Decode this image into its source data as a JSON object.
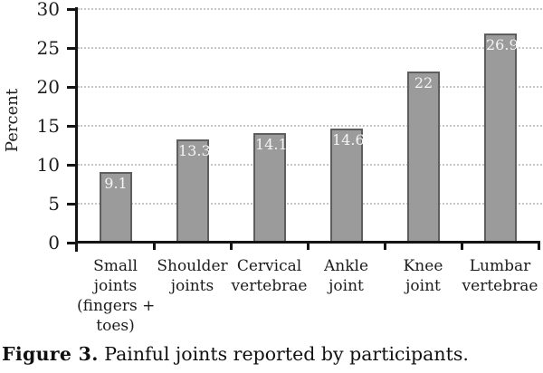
{
  "figure": {
    "caption_label": "Figure 3.",
    "caption_text": "Painful joints reported by participants."
  },
  "chart_data": {
    "type": "bar",
    "title": "",
    "xlabel": "",
    "ylabel": "Percent",
    "ylim": [
      0,
      30
    ],
    "yticks": [
      0,
      5,
      10,
      15,
      20,
      25,
      30
    ],
    "grid": "horizontal-dotted",
    "legend_position": "none",
    "categories": [
      "Small joints (fingers + toes)",
      "Shoulder joints",
      "Cervical vertebrae",
      "Ankle joint",
      "Knee joint",
      "Lumbar vertebrae"
    ],
    "category_label_lines": [
      [
        "Small",
        "joints",
        "(fingers +",
        "toes)"
      ],
      [
        "Shoulder",
        "joints"
      ],
      [
        "Cervical",
        "vertebrae"
      ],
      [
        "Ankle",
        "joint"
      ],
      [
        "Knee",
        "joint"
      ],
      [
        "Lumbar",
        "vertebrae"
      ]
    ],
    "values": [
      9.1,
      13.3,
      14.1,
      14.6,
      22,
      26.9
    ],
    "value_labels": [
      "9.1",
      "13.3",
      "14.1",
      "14.6",
      "22",
      "26.9"
    ],
    "colors": {
      "bar_fill": "#9b9b9b",
      "bar_border": "#5e5e60",
      "value_label": "#f4f4f4",
      "axis": "#141414",
      "gridline": "#c6c6c6",
      "text": "#1c1c1c"
    }
  }
}
